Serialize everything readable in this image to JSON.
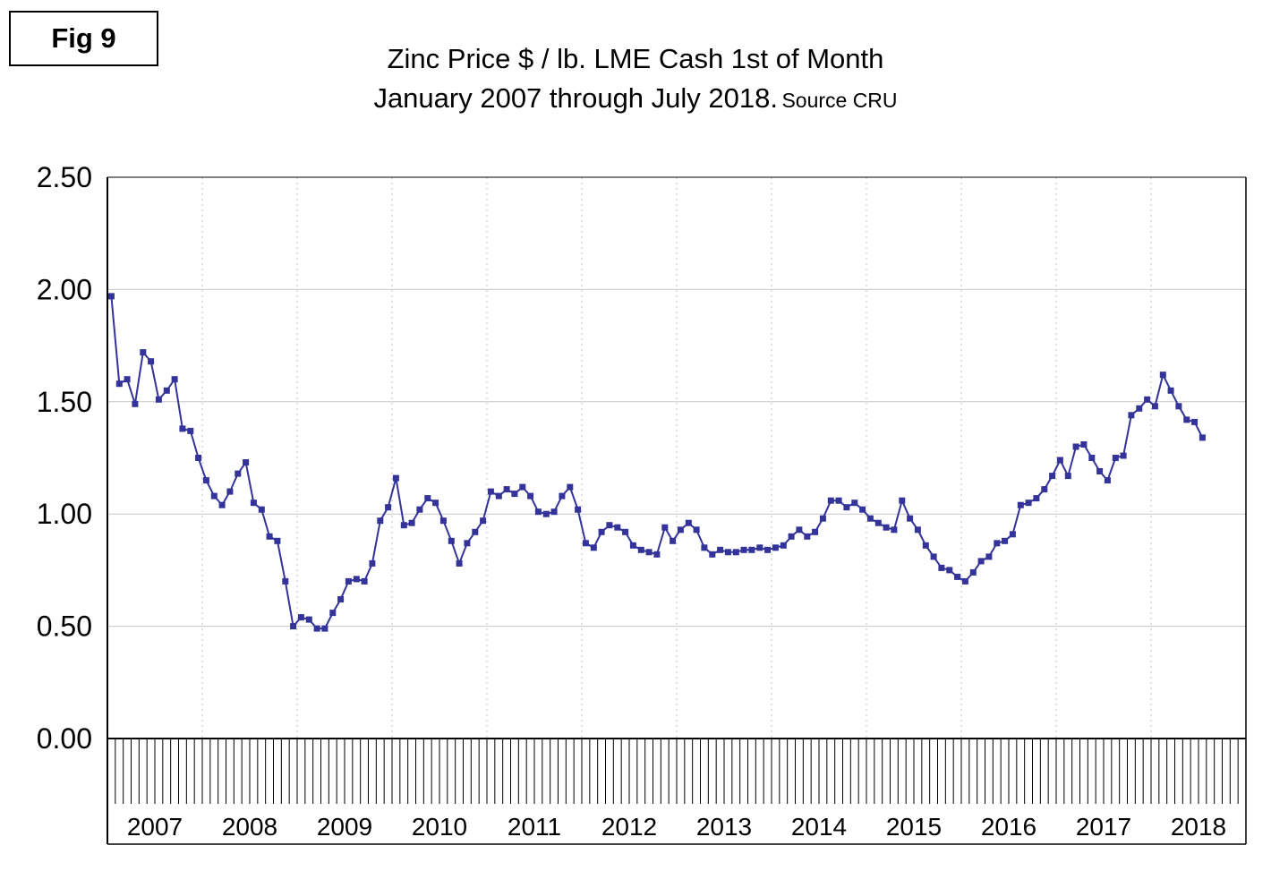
{
  "figure": {
    "label": "Fig 9"
  },
  "title": {
    "line1": "Zinc Price $ / lb. LME Cash 1st of Month",
    "line2": "January 2007 through July 2018.",
    "source": "Source CRU"
  },
  "chart_data": {
    "type": "line",
    "title": "Zinc Price $ / lb. LME Cash 1st of Month",
    "subtitle": "January 2007 through July 2018. Source CRU",
    "xlabel": "",
    "ylabel": "Zinc Price $ / lb",
    "x_start": "2007-01",
    "x_end": "2018-07",
    "x_year_labels": [
      "2007",
      "2008",
      "2009",
      "2010",
      "2011",
      "2012",
      "2013",
      "2014",
      "2015",
      "2016",
      "2017",
      "2018"
    ],
    "y_tick_labels": [
      "0.00",
      "0.50",
      "1.00",
      "1.50",
      "2.00",
      "2.50"
    ],
    "ylim": [
      0,
      2.5
    ],
    "grid": {
      "horizontal": "solid",
      "vertical_year_boundaries": "dashed"
    },
    "legend": "none",
    "marker": "square",
    "colors": {
      "line": "#333399",
      "gridline": "#c6c6c6",
      "axis": "#000000"
    },
    "series": [
      {
        "name": "Zinc Price $/lb LME Cash 1st of Month",
        "monthly_values_by_year": {
          "2007": [
            1.97,
            1.58,
            1.6,
            1.49,
            1.72,
            1.68,
            1.51,
            1.55,
            1.6,
            1.38,
            1.37,
            1.25
          ],
          "2008": [
            1.15,
            1.08,
            1.04,
            1.1,
            1.18,
            1.23,
            1.05,
            1.02,
            0.9,
            0.88,
            0.7,
            0.5
          ],
          "2009": [
            0.54,
            0.53,
            0.49,
            0.49,
            0.56,
            0.62,
            0.7,
            0.71,
            0.7,
            0.78,
            0.97,
            1.03
          ],
          "2010": [
            1.16,
            0.95,
            0.96,
            1.02,
            1.07,
            1.05,
            0.97,
            0.88,
            0.78,
            0.87,
            0.92,
            0.97
          ],
          "2011": [
            1.1,
            1.08,
            1.11,
            1.09,
            1.12,
            1.08,
            1.01,
            1.0,
            1.01,
            1.08,
            1.12,
            1.02
          ],
          "2012": [
            0.87,
            0.85,
            0.92,
            0.95,
            0.94,
            0.92,
            0.86,
            0.84,
            0.83,
            0.82,
            0.94,
            0.88
          ],
          "2013": [
            0.93,
            0.96,
            0.93,
            0.85,
            0.82,
            0.84,
            0.83,
            0.83,
            0.84,
            0.84,
            0.85,
            0.84
          ],
          "2014": [
            0.85,
            0.86,
            0.9,
            0.93,
            0.9,
            0.92,
            0.98,
            1.06,
            1.06,
            1.03,
            1.05,
            1.02
          ],
          "2015": [
            0.98,
            0.96,
            0.94,
            0.93,
            1.06,
            0.98,
            0.93,
            0.86,
            0.81,
            0.76,
            0.75,
            0.72
          ],
          "2016": [
            0.7,
            0.74,
            0.79,
            0.81,
            0.87,
            0.88,
            0.91,
            1.04,
            1.05,
            1.07,
            1.11,
            1.17
          ],
          "2017": [
            1.24,
            1.17,
            1.3,
            1.31,
            1.25,
            1.19,
            1.15,
            1.25,
            1.26,
            1.44,
            1.47,
            1.51
          ],
          "2018": [
            1.48,
            1.62,
            1.55,
            1.48,
            1.42,
            1.41,
            1.34
          ]
        }
      }
    ]
  }
}
